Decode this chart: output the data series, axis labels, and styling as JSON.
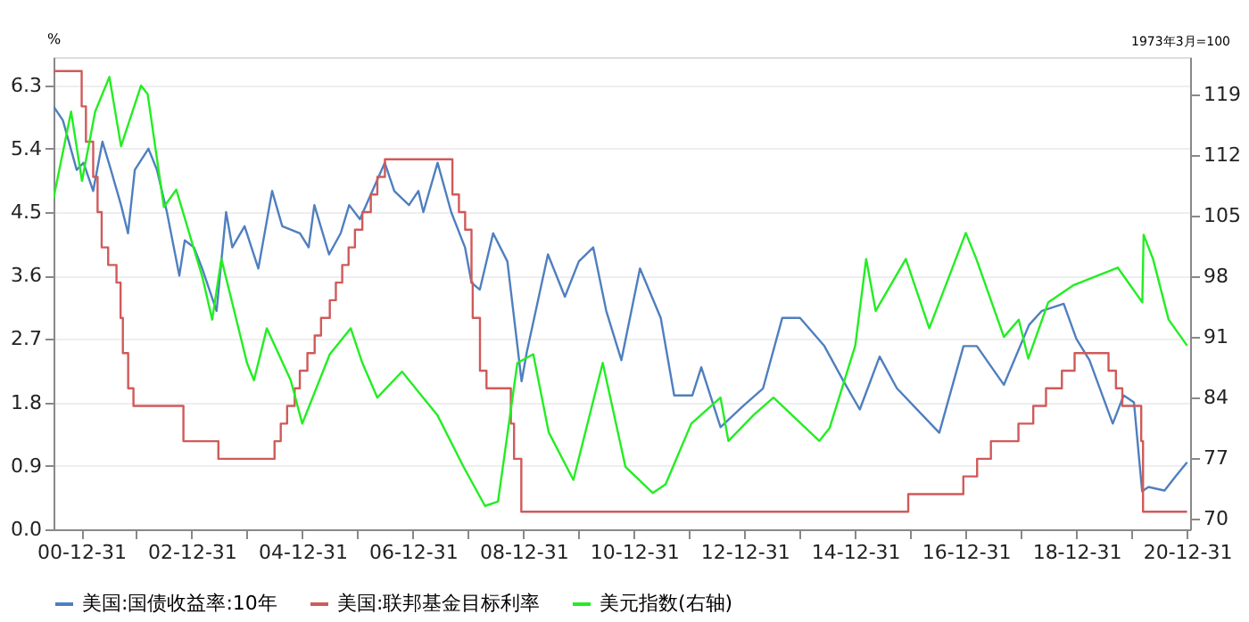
{
  "chart_data": {
    "type": "line",
    "ylabel": "%",
    "y2label": "1973年3月=100",
    "xlim": [
      "2000-07-01",
      "2021-01-20"
    ],
    "xticks": [
      {
        "value": "2000-12-31",
        "label": "00-12-31"
      },
      {
        "value": "2001-12-31",
        "label": null
      },
      {
        "value": "2002-12-31",
        "label": "02-12-31"
      },
      {
        "value": "2003-12-31",
        "label": null
      },
      {
        "value": "2004-12-31",
        "label": "04-12-31"
      },
      {
        "value": "2005-12-31",
        "label": null
      },
      {
        "value": "2006-12-31",
        "label": "06-12-31"
      },
      {
        "value": "2007-12-31",
        "label": null
      },
      {
        "value": "2008-12-31",
        "label": "08-12-31"
      },
      {
        "value": "2009-12-31",
        "label": null
      },
      {
        "value": "2010-12-31",
        "label": "10-12-31"
      },
      {
        "value": "2011-12-31",
        "label": null
      },
      {
        "value": "2012-12-31",
        "label": "12-12-31"
      },
      {
        "value": "2013-12-31",
        "label": null
      },
      {
        "value": "2014-12-31",
        "label": "14-12-31"
      },
      {
        "value": "2015-12-31",
        "label": null
      },
      {
        "value": "2016-12-31",
        "label": "16-12-31"
      },
      {
        "value": "2017-12-31",
        "label": null
      },
      {
        "value": "2018-12-31",
        "label": "18-12-31"
      },
      {
        "value": "2019-12-31",
        "label": null
      },
      {
        "value": "2020-12-31",
        "label": "20-12-31"
      }
    ],
    "ylim": [
      0,
      6.7
    ],
    "yticks": [
      {
        "value": 0,
        "label": "0.0"
      },
      0.9,
      1.8,
      2.7,
      3.6,
      4.5,
      5.4,
      6.3
    ],
    "y2lim": [
      68.8,
      123.3
    ],
    "y2ticks": [
      70,
      77,
      84,
      91,
      98,
      105,
      112,
      119
    ],
    "grid": "y",
    "legend": "bottom",
    "line_style": "solid",
    "marker": "none",
    "series": [
      {
        "name": "美国:国债收益率:10年",
        "color": "#4f7fbf",
        "type": "line",
        "x": [
          "2000-07-01",
          "2000-09-01",
          "2000-12-01",
          "2001-01-15",
          "2001-03-20",
          "2001-05-20",
          "2001-07-15",
          "2001-09-20",
          "2001-11-05",
          "2001-12-20",
          "2002-03-20",
          "2002-05-15",
          "2002-07-20",
          "2002-10-10",
          "2002-11-15",
          "2003-01-15",
          "2003-03-10",
          "2003-06-13",
          "2003-08-15",
          "2003-09-25",
          "2003-12-15",
          "2004-03-15",
          "2004-06-14",
          "2004-08-20",
          "2004-12-15",
          "2005-02-10",
          "2005-03-20",
          "2005-06-25",
          "2005-09-10",
          "2005-11-05",
          "2006-01-15",
          "2006-06-28",
          "2006-08-30",
          "2006-12-05",
          "2007-02-05",
          "2007-03-10",
          "2007-06-12",
          "2007-09-10",
          "2007-12-10",
          "2008-01-22",
          "2008-03-17",
          "2008-06-13",
          "2008-09-15",
          "2008-12-18",
          "2009-01-20",
          "2009-06-10",
          "2009-09-30",
          "2009-12-31",
          "2010-04-05",
          "2010-06-30",
          "2010-10-08",
          "2011-02-08",
          "2011-06-25",
          "2011-09-22",
          "2012-01-20",
          "2012-03-19",
          "2012-07-24",
          "2012-12-20",
          "2013-05-01",
          "2013-09-05",
          "2013-12-31",
          "2014-06-10",
          "2014-10-15",
          "2015-01-30",
          "2015-06-10",
          "2015-10-02",
          "2016-07-08",
          "2016-12-15",
          "2017-03-13",
          "2017-09-08",
          "2018-02-21",
          "2018-05-17",
          "2018-10-08",
          "2018-12-31",
          "2019-03-27",
          "2019-08-28",
          "2019-11-08",
          "2020-01-15",
          "2020-03-09",
          "2020-04-20",
          "2020-08-04",
          "2020-10-15",
          "2020-12-31"
        ],
        "values": [
          6.0,
          5.8,
          5.1,
          5.2,
          4.8,
          5.5,
          5.1,
          4.6,
          4.2,
          5.1,
          5.4,
          5.1,
          4.5,
          3.6,
          4.1,
          4.0,
          3.7,
          3.1,
          4.5,
          4.0,
          4.3,
          3.7,
          4.8,
          4.3,
          4.2,
          4.0,
          4.6,
          3.9,
          4.2,
          4.6,
          4.4,
          5.2,
          4.8,
          4.6,
          4.8,
          4.5,
          5.2,
          4.5,
          4.0,
          3.5,
          3.4,
          4.2,
          3.8,
          2.1,
          2.5,
          3.9,
          3.3,
          3.8,
          4.0,
          3.1,
          2.4,
          3.7,
          3.0,
          1.9,
          1.9,
          2.3,
          1.45,
          1.75,
          2.0,
          3.0,
          3.0,
          2.6,
          2.1,
          1.7,
          2.45,
          2.0,
          1.37,
          2.6,
          2.6,
          2.05,
          2.9,
          3.1,
          3.2,
          2.7,
          2.4,
          1.5,
          1.9,
          1.8,
          0.54,
          0.6,
          0.55,
          0.75,
          0.95
        ]
      },
      {
        "name": "美国:联邦基金目标利率",
        "color": "#d05a5a",
        "type": "step",
        "x": [
          "2000-07-01",
          "2001-01-03",
          "2001-01-31",
          "2001-03-20",
          "2001-04-18",
          "2001-05-15",
          "2001-06-27",
          "2001-08-21",
          "2001-09-17",
          "2001-10-02",
          "2001-11-06",
          "2001-12-11",
          "2002-11-06",
          "2003-06-25",
          "2004-06-30",
          "2004-08-10",
          "2004-09-21",
          "2004-11-10",
          "2004-12-14",
          "2005-02-02",
          "2005-03-22",
          "2005-05-03",
          "2005-06-30",
          "2005-08-09",
          "2005-09-20",
          "2005-11-01",
          "2005-12-13",
          "2006-01-31",
          "2006-03-28",
          "2006-05-10",
          "2006-06-29",
          "2007-09-18",
          "2007-10-31",
          "2007-12-11",
          "2008-01-22",
          "2008-01-30",
          "2008-03-18",
          "2008-04-30",
          "2008-10-08",
          "2008-10-29",
          "2008-12-16",
          "2015-12-16",
          "2016-12-14",
          "2017-03-15",
          "2017-06-14",
          "2017-12-13",
          "2018-03-21",
          "2018-06-13",
          "2018-09-26",
          "2018-12-19",
          "2019-07-31",
          "2019-09-18",
          "2019-10-30",
          "2020-03-03",
          "2020-03-15",
          "2020-12-31"
        ],
        "values": [
          6.5,
          6.0,
          5.5,
          5.0,
          4.5,
          4.0,
          3.75,
          3.5,
          3.0,
          2.5,
          2.0,
          1.75,
          1.25,
          1.0,
          1.25,
          1.5,
          1.75,
          2.0,
          2.25,
          2.5,
          2.75,
          3.0,
          3.25,
          3.5,
          3.75,
          4.0,
          4.25,
          4.5,
          4.75,
          5.0,
          5.25,
          4.75,
          4.5,
          4.25,
          3.5,
          3.0,
          2.25,
          2.0,
          1.5,
          1.0,
          0.25,
          0.5,
          0.75,
          1.0,
          1.25,
          1.5,
          1.75,
          2.0,
          2.25,
          2.5,
          2.25,
          2.0,
          1.75,
          1.25,
          0.25,
          0.25
        ]
      },
      {
        "name": "美元指数(右轴)",
        "color": "#22ee22",
        "type": "line",
        "axis": "y2",
        "x": [
          "2000-07-01",
          "2000-10-25",
          "2001-01-05",
          "2001-04-02",
          "2001-07-05",
          "2001-09-20",
          "2002-01-30",
          "2002-03-15",
          "2002-06-30",
          "2002-09-20",
          "2002-12-31",
          "2003-03-10",
          "2003-05-15",
          "2003-07-15",
          "2003-12-31",
          "2004-02-15",
          "2004-05-10",
          "2004-10-15",
          "2004-12-30",
          "2005-06-30",
          "2005-11-15",
          "2006-01-31",
          "2006-05-10",
          "2006-10-20",
          "2007-06-10",
          "2007-12-01",
          "2008-04-20",
          "2008-07-15",
          "2008-11-20",
          "2009-03-05",
          "2009-06-15",
          "2009-11-25",
          "2010-06-07",
          "2010-11-04",
          "2011-05-03",
          "2011-07-27",
          "2012-01-13",
          "2012-07-24",
          "2012-09-14",
          "2013-02-28",
          "2013-07-09",
          "2014-05-08",
          "2014-07-15",
          "2014-12-31",
          "2015-03-13",
          "2015-05-15",
          "2015-11-30",
          "2016-05-03",
          "2016-12-30",
          "2017-03-10",
          "2017-09-08",
          "2017-12-15",
          "2018-02-16",
          "2018-06-28",
          "2018-12-14",
          "2019-09-30",
          "2020-03-10",
          "2020-03-19",
          "2020-05-20",
          "2020-08-31",
          "2020-12-31"
        ],
        "values": [
          107,
          117,
          109,
          117,
          121,
          113,
          120,
          119,
          106,
          108,
          102,
          98,
          93,
          100,
          88,
          86,
          92,
          86,
          81,
          89,
          92,
          88,
          84,
          87,
          82,
          76,
          71.5,
          72,
          88,
          89,
          80,
          74.5,
          88,
          76,
          73,
          74,
          81,
          84,
          79,
          82,
          84,
          79,
          80.5,
          90,
          100,
          94,
          100,
          92,
          103,
          100,
          91,
          93,
          88.5,
          95,
          97,
          99,
          95,
          102.8,
          100,
          93,
          90
        ]
      }
    ]
  }
}
